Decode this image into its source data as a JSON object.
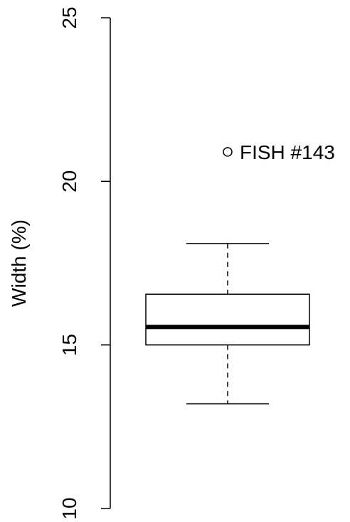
{
  "chart_data": {
    "type": "boxplot",
    "ylabel": "Width (%)",
    "ylim": [
      10,
      25
    ],
    "y_ticks": [
      10,
      15,
      20,
      25
    ],
    "y_tick_labels": [
      "10",
      "15",
      "20",
      "25"
    ],
    "box": {
      "whisker_low": 13.2,
      "q1": 15.0,
      "median": 15.55,
      "q3": 16.55,
      "whisker_high": 18.1
    },
    "outliers": [
      {
        "value": 20.9,
        "label": "FISH #143"
      }
    ],
    "grid": false,
    "colors": {
      "line": "#000000",
      "background": "#ffffff"
    }
  }
}
